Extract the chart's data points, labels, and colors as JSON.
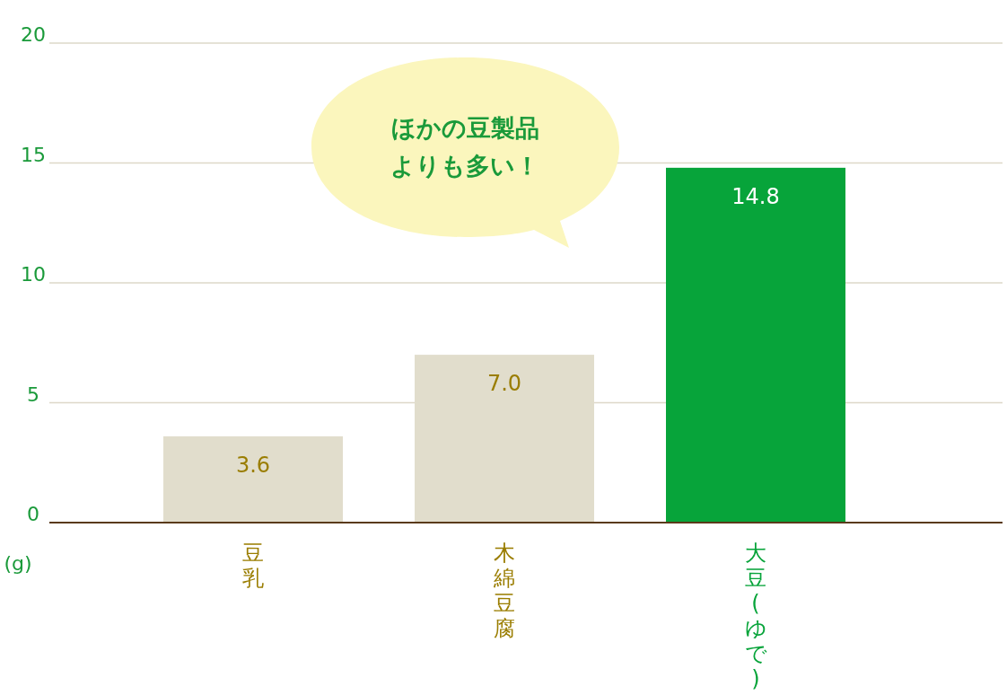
{
  "chart_data": {
    "type": "bar",
    "categories": [
      "豆乳",
      "木綿豆腐",
      "大豆(ゆで)"
    ],
    "values": [
      3.6,
      7.0,
      14.8
    ],
    "colors": [
      "#e1ddcc",
      "#e1ddcc",
      "#07a43a"
    ],
    "value_labels": [
      "3.6",
      "7.0",
      "14.8"
    ],
    "ylabel": "(g)",
    "ylim": [
      0,
      20
    ],
    "yticks": [
      0,
      5,
      10,
      15,
      20
    ],
    "grid": "y",
    "annotations": [
      "ほかの豆製品よりも多い！"
    ]
  }
}
